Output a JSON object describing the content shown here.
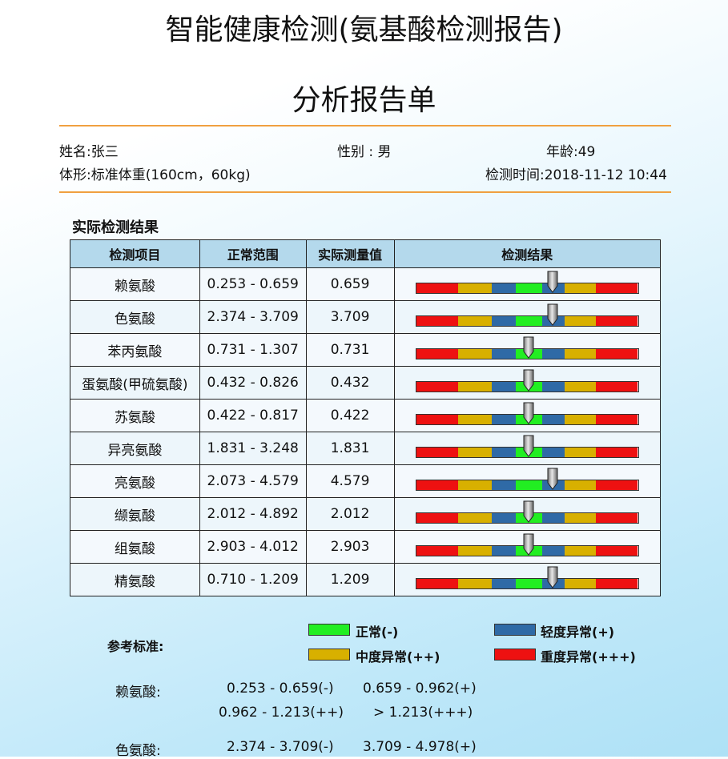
{
  "report": {
    "title": "智能健康检测(氨基酸检测报告)",
    "subtitle": "分析报告单"
  },
  "patient": {
    "name": "姓名:张三",
    "gender": "性别 : 男",
    "age": "年龄:49",
    "body_type": "体形:标准体重(160cm，60kg)",
    "test_time": "检测时间:2018-11-12 10:44"
  },
  "results": {
    "section_title": "实际检测结果",
    "headers": [
      "检测项目",
      "正常范围",
      "实际测量值",
      "检测结果"
    ],
    "rows": [
      {
        "item": "赖氨酸",
        "range": "0.253 - 0.659",
        "value": "0.659",
        "marker": 0.62
      },
      {
        "item": "色氨酸",
        "range": "2.374 - 3.709",
        "value": "3.709",
        "marker": 0.62
      },
      {
        "item": "苯丙氨酸",
        "range": "0.731 - 1.307",
        "value": "0.731",
        "marker": 0.51
      },
      {
        "item": "蛋氨酸(甲硫氨酸)",
        "range": "0.432 - 0.826",
        "value": "0.432",
        "marker": 0.51
      },
      {
        "item": "苏氨酸",
        "range": "0.422 - 0.817",
        "value": "0.422",
        "marker": 0.51
      },
      {
        "item": "异亮氨酸",
        "range": "1.831 - 3.248",
        "value": "1.831",
        "marker": 0.51
      },
      {
        "item": "亮氨酸",
        "range": "2.073 - 4.579",
        "value": "4.579",
        "marker": 0.62
      },
      {
        "item": "缬氨酸",
        "range": "2.012 - 4.892",
        "value": "2.012",
        "marker": 0.51
      },
      {
        "item": "组氨酸",
        "range": "2.903 - 4.012",
        "value": "2.903",
        "marker": 0.51
      },
      {
        "item": "精氨酸",
        "range": "0.710 - 1.209",
        "value": "1.209",
        "marker": 0.62
      }
    ]
  },
  "bar_segments": [
    {
      "color": "#ee1111",
      "width": 0.19
    },
    {
      "color": "#d8b000",
      "width": 0.15
    },
    {
      "color": "#2f6aa6",
      "width": 0.11
    },
    {
      "color": "#22ee22",
      "width": 0.12
    },
    {
      "color": "#2f6aa6",
      "width": 0.1
    },
    {
      "color": "#d8b000",
      "width": 0.14
    },
    {
      "color": "#ee1111",
      "width": 0.19
    }
  ],
  "legend": {
    "title": "参考标准:",
    "normal": "正常(-)",
    "mild": "轻度异常(+)",
    "moderate": "中度异常(++)",
    "severe": "重度异常(+++)",
    "colors": {
      "normal": "#22ee22",
      "mild": "#2f6aa6",
      "moderate": "#d8b000",
      "severe": "#ee1111"
    }
  },
  "reference": {
    "lysine": {
      "name": "赖氨酸:",
      "normal": "0.253 - 0.659(-)",
      "mild": "0.659 - 0.962(+)",
      "moderate": "0.962 - 1.213(++)",
      "severe": "> 1.213(+++)"
    },
    "tryptophan": {
      "name": "色氨酸:",
      "normal": "2.374 - 3.709(-)",
      "mild": "3.709 - 4.978(+)"
    }
  }
}
